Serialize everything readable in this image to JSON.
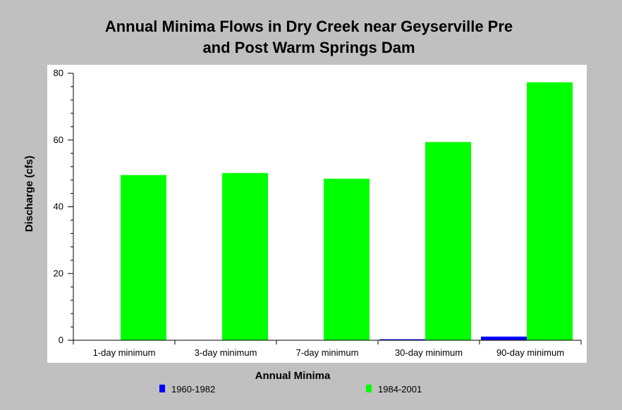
{
  "chart_data": {
    "type": "bar",
    "title_line1": "Annual Minima Flows in Dry Creek near Geyserville Pre",
    "title_line2": "and Post Warm Springs Dam",
    "xlabel": "Annual Minima",
    "ylabel": "Discharge (cfs)",
    "ylim": [
      0,
      80
    ],
    "yticks": [
      "0",
      "20",
      "40",
      "60",
      "80"
    ],
    "categories": [
      "1-day minimum",
      "3-day minimum",
      "7-day minimum",
      "30-day minimum",
      "90-day minimum"
    ],
    "series": [
      {
        "name": "1960-1982",
        "color": "#0000ff",
        "values": [
          0,
          0,
          0,
          0.3,
          1.1
        ]
      },
      {
        "name": "1984-2001",
        "color": "#00ff00",
        "values": [
          49.5,
          50.1,
          48.4,
          59.4,
          77.3
        ]
      }
    ],
    "grid": false,
    "legend_position": "bottom"
  }
}
